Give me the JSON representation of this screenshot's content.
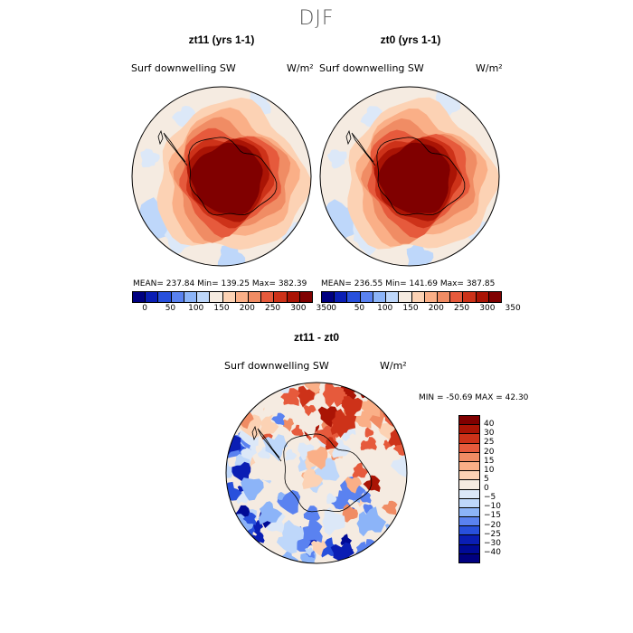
{
  "figure": {
    "season": "DJF"
  },
  "panels": [
    {
      "title": "zt11 (yrs 1-1)",
      "var": "Surf downwelling SW",
      "units": "W/m²",
      "stats": "MEAN= 237.84  Min= 139.25  Max= 382.39"
    },
    {
      "title": "zt0 (yrs 1-1)",
      "var": "Surf downwelling SW",
      "units": "W/m²",
      "stats": "MEAN= 236.55  Min= 141.69  Max= 387.85"
    },
    {
      "title": "zt11 - zt0",
      "var": "Surf downwelling SW",
      "units": "W/m²",
      "stats": "MIN = -50.69 MAX =  42.30"
    }
  ],
  "colorbar_abs": {
    "colors": [
      "#000080",
      "#0a1eb4",
      "#2850dc",
      "#5a82f0",
      "#8cb4f8",
      "#bed7fa",
      "#f5ebe1",
      "#fcd2b4",
      "#faaf87",
      "#f08c64",
      "#e65a3c",
      "#cd3219",
      "#aa1405",
      "#800000"
    ],
    "tick_labels": [
      "0",
      "50",
      "100",
      "150",
      "200",
      "250",
      "300",
      "350"
    ]
  },
  "colorbar_diff": {
    "colors_top_to_bottom": [
      "#800000",
      "#aa1405",
      "#cd3219",
      "#e65a3c",
      "#f08c64",
      "#faaf87",
      "#fcd2b4",
      "#f5ebe1",
      "#dce8f8",
      "#bed7fa",
      "#8cb4f8",
      "#5a82f0",
      "#2850dc",
      "#0a1eb4",
      "#000a96",
      "#000080"
    ],
    "tick_labels_top_to_bottom": [
      "40",
      "30",
      "25",
      "20",
      "15",
      "10",
      "5",
      "0",
      "−5",
      "−10",
      "−15",
      "−20",
      "−25",
      "−30",
      "−40"
    ]
  }
}
